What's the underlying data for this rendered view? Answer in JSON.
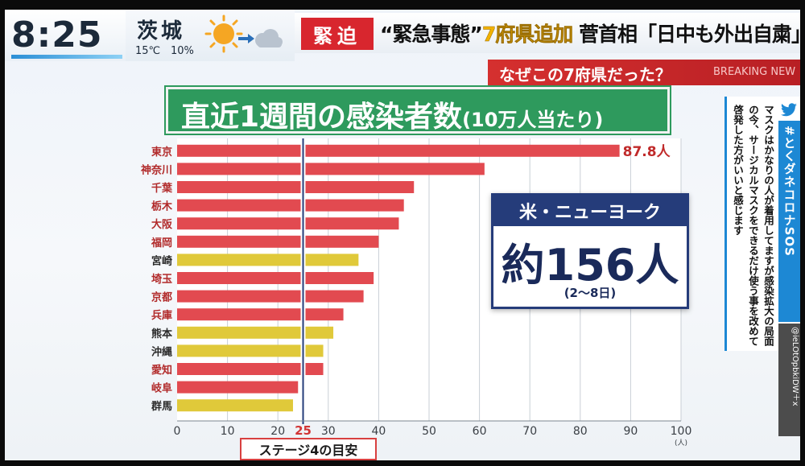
{
  "clock": {
    "time": "8:25"
  },
  "weather": {
    "city": "茨城",
    "temp": "15℃",
    "precip": "10%",
    "icon": "sun-cloud-icon"
  },
  "headline": {
    "tag": "緊迫",
    "part1": "“緊急事態”",
    "part2": "7府県追加",
    "part3": " 菅首相「日中も外出自粛」"
  },
  "subheadline": {
    "text": "なぜこの7府県だった？",
    "breaking": "BREAKING NEW"
  },
  "chart_title": {
    "main": "直近1週間の感染者数",
    "sub": "(10万人当たり)"
  },
  "chart_data": {
    "type": "bar",
    "orientation": "horizontal",
    "categories": [
      "東京",
      "神奈川",
      "千葉",
      "栃木",
      "大阪",
      "福岡",
      "宮崎",
      "埼玉",
      "京都",
      "兵庫",
      "熊本",
      "沖縄",
      "愛知",
      "岐阜",
      "群馬"
    ],
    "values": [
      87.8,
      61,
      47,
      45,
      44,
      40,
      36,
      39,
      37,
      33,
      31,
      29,
      29,
      24,
      23
    ],
    "bar_colors": [
      "#e24a50",
      "#e24a50",
      "#e24a50",
      "#e24a50",
      "#e24a50",
      "#e24a50",
      "#e0c93a",
      "#e24a50",
      "#e24a50",
      "#e24a50",
      "#e0c93a",
      "#e0c93a",
      "#e24a50",
      "#e24a50",
      "#e0c93a"
    ],
    "label_colors": [
      "#b12a2a",
      "#b12a2a",
      "#b12a2a",
      "#b12a2a",
      "#b12a2a",
      "#b12a2a",
      "#2b2b2b",
      "#b12a2a",
      "#b12a2a",
      "#b12a2a",
      "#2b2b2b",
      "#2b2b2b",
      "#b12a2a",
      "#b12a2a",
      "#2b2b2b"
    ],
    "value_label": "87.8人",
    "xlim": [
      0,
      100
    ],
    "xticks": [
      0,
      10,
      20,
      30,
      40,
      50,
      60,
      70,
      80,
      90,
      100
    ],
    "x_unit": "(人)",
    "reference_line": {
      "value": 25,
      "label": "25"
    },
    "grid": true
  },
  "stage_label": "ステージ4の目安",
  "ny_box": {
    "title": "米・ニューヨーク",
    "value": "約156人",
    "period": "(2〜8日)"
  },
  "tweet": {
    "hashtag": "#とくダネコロナSOS",
    "user": "@ieLOtOpbkiDW＋x",
    "text": "マスクはかなりの人が着用してますが感染拡大の局面の今、サージカルマスクをできるだけ使う事を改めて啓発した方がいいと感じます"
  }
}
